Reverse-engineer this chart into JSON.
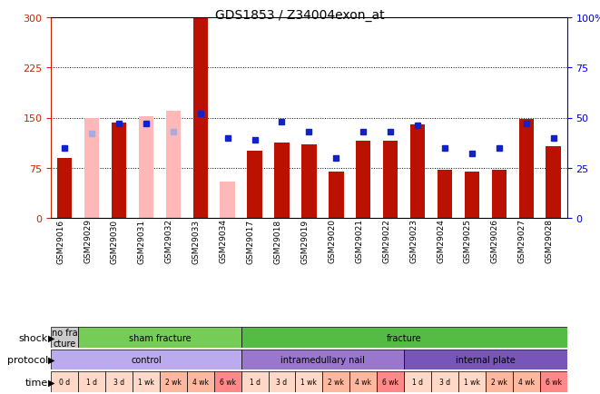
{
  "title": "GDS1853 / Z34004exon_at",
  "samples": [
    "GSM29016",
    "GSM29029",
    "GSM29030",
    "GSM29031",
    "GSM29032",
    "GSM29033",
    "GSM29034",
    "GSM29017",
    "GSM29018",
    "GSM29019",
    "GSM29020",
    "GSM29021",
    "GSM29022",
    "GSM29023",
    "GSM29024",
    "GSM29025",
    "GSM29026",
    "GSM29027",
    "GSM29028"
  ],
  "count_values": [
    90,
    150,
    143,
    152,
    160,
    298,
    55,
    100,
    113,
    110,
    70,
    115,
    115,
    140,
    72,
    70,
    72,
    148,
    108
  ],
  "count_absent": [
    false,
    true,
    false,
    true,
    true,
    false,
    true,
    false,
    false,
    false,
    false,
    false,
    false,
    false,
    false,
    false,
    false,
    false,
    false
  ],
  "rank_values": [
    35,
    42,
    47,
    47,
    43,
    52,
    40,
    39,
    48,
    43,
    30,
    43,
    43,
    46,
    35,
    32,
    35,
    47,
    40
  ],
  "rank_absent": [
    false,
    true,
    false,
    false,
    true,
    false,
    false,
    false,
    false,
    false,
    false,
    false,
    false,
    false,
    false,
    false,
    false,
    false,
    false
  ],
  "ylim_left": [
    0,
    300
  ],
  "ylim_right": [
    0,
    100
  ],
  "yticks_left": [
    0,
    75,
    150,
    225,
    300
  ],
  "yticks_right": [
    0,
    25,
    50,
    75,
    100
  ],
  "bar_color": "#bb1100",
  "bar_absent_color": "#ffb8b8",
  "rank_color": "#1122cc",
  "rank_absent_color": "#aaaadd",
  "shock_regions": [
    {
      "label": "no fra\ncture",
      "start": 0,
      "end": 1,
      "color": "#cccccc"
    },
    {
      "label": "sham fracture",
      "start": 1,
      "end": 7,
      "color": "#77cc55"
    },
    {
      "label": "fracture",
      "start": 7,
      "end": 19,
      "color": "#55bb44"
    }
  ],
  "protocol_regions": [
    {
      "label": "control",
      "start": 0,
      "end": 7,
      "color": "#bbaaee"
    },
    {
      "label": "intramedullary nail",
      "start": 7,
      "end": 13,
      "color": "#9977cc"
    },
    {
      "label": "internal plate",
      "start": 13,
      "end": 19,
      "color": "#7755bb"
    }
  ],
  "time_labels": [
    "0 d",
    "1 d",
    "3 d",
    "1 wk",
    "2 wk",
    "4 wk",
    "6 wk",
    "1 d",
    "3 d",
    "1 wk",
    "2 wk",
    "4 wk",
    "6 wk",
    "1 d",
    "3 d",
    "1 wk",
    "2 wk",
    "4 wk",
    "6 wk"
  ],
  "time_colors": [
    "#ffd8c8",
    "#ffd8c8",
    "#ffd8c8",
    "#ffd8c8",
    "#ffb8a0",
    "#ffb8a0",
    "#ff8888",
    "#ffd8c8",
    "#ffd8c8",
    "#ffd8c8",
    "#ffb8a0",
    "#ffb8a0",
    "#ff8888",
    "#ffd8c8",
    "#ffd8c8",
    "#ffd8c8",
    "#ffb8a0",
    "#ffb8a0",
    "#ff8888"
  ],
  "left_axis_color": "#cc2200",
  "right_axis_color": "#0000cc"
}
